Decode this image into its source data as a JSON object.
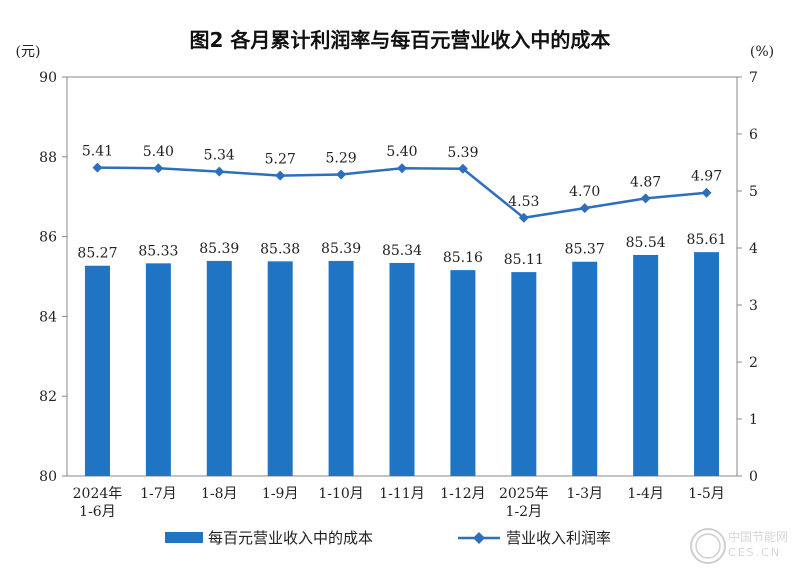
{
  "chart_data": {
    "type": "bar+line",
    "title": "图2  各月累计利润率与每百元营业收入中的成本",
    "left_unit": "(元)",
    "right_unit": "(%)",
    "categories": [
      [
        "2024年",
        "1-6月"
      ],
      [
        "1-7月"
      ],
      [
        "1-8月"
      ],
      [
        "1-9月"
      ],
      [
        "1-10月"
      ],
      [
        "1-11月"
      ],
      [
        "1-12月"
      ],
      [
        "2025年",
        "1-2月"
      ],
      [
        "1-3月"
      ],
      [
        "1-4月"
      ],
      [
        "1-5月"
      ]
    ],
    "left_axis": {
      "ylim": [
        80,
        90
      ],
      "ticks": [
        "80",
        "82",
        "84",
        "86",
        "88",
        "90"
      ]
    },
    "right_axis": {
      "ylim": [
        0,
        7
      ],
      "ticks": [
        "0",
        "1",
        "2",
        "3",
        "4",
        "5",
        "6",
        "7"
      ]
    },
    "grid": false,
    "legend_placement": "bottom",
    "series": [
      {
        "name": "每百元营业收入中的成本",
        "type": "bar",
        "axis": "left",
        "color": "#1f74c4",
        "values": [
          85.27,
          85.33,
          85.39,
          85.38,
          85.39,
          85.34,
          85.16,
          85.11,
          85.37,
          85.54,
          85.61
        ],
        "labels": [
          "85.27",
          "85.33",
          "85.39",
          "85.38",
          "85.39",
          "85.34",
          "85.16",
          "85.11",
          "85.37",
          "85.54",
          "85.61"
        ]
      },
      {
        "name": "营业收入利润率",
        "type": "line",
        "axis": "right",
        "color": "#2e6fbd",
        "values": [
          5.41,
          5.4,
          5.34,
          5.27,
          5.29,
          5.4,
          5.39,
          4.53,
          4.7,
          4.87,
          4.97
        ],
        "labels": [
          "5.41",
          "5.40",
          "5.34",
          "5.27",
          "5.29",
          "5.40",
          "5.39",
          "4.53",
          "4.70",
          "4.87",
          "4.97"
        ]
      }
    ]
  },
  "watermark": {
    "cn": "中国节能网",
    "en": "CES.CN"
  }
}
